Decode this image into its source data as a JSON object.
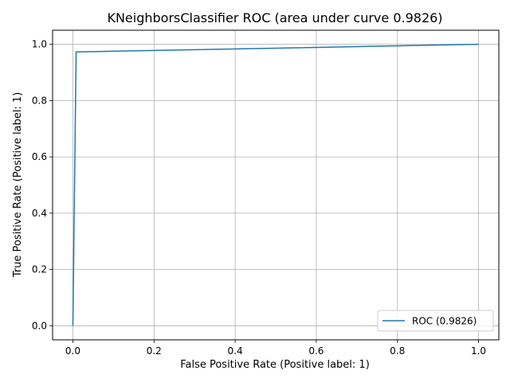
{
  "chart_data": {
    "type": "line",
    "title": "KNeighborsClassifier ROC (area under curve 0.9826)",
    "xlabel": "False Positive Rate (Positive label: 1)",
    "ylabel": "True Positive Rate (Positive label: 1)",
    "xlim": [
      -0.05,
      1.05
    ],
    "ylim": [
      -0.05,
      1.05
    ],
    "xticks": [
      0.0,
      0.2,
      0.4,
      0.6,
      0.8,
      1.0
    ],
    "yticks": [
      0.0,
      0.2,
      0.4,
      0.6,
      0.8,
      1.0
    ],
    "xtick_labels": [
      "0.0",
      "0.2",
      "0.4",
      "0.6",
      "0.8",
      "1.0"
    ],
    "ytick_labels": [
      "0.0",
      "0.2",
      "0.4",
      "0.6",
      "0.8",
      "1.0"
    ],
    "grid": true,
    "legend_position": "lower-right",
    "series": [
      {
        "name": "ROC (0.9826)",
        "color": "#1f77b4",
        "x": [
          0.0,
          0.008,
          1.0
        ],
        "y": [
          0.0,
          0.973,
          1.0
        ]
      }
    ]
  }
}
